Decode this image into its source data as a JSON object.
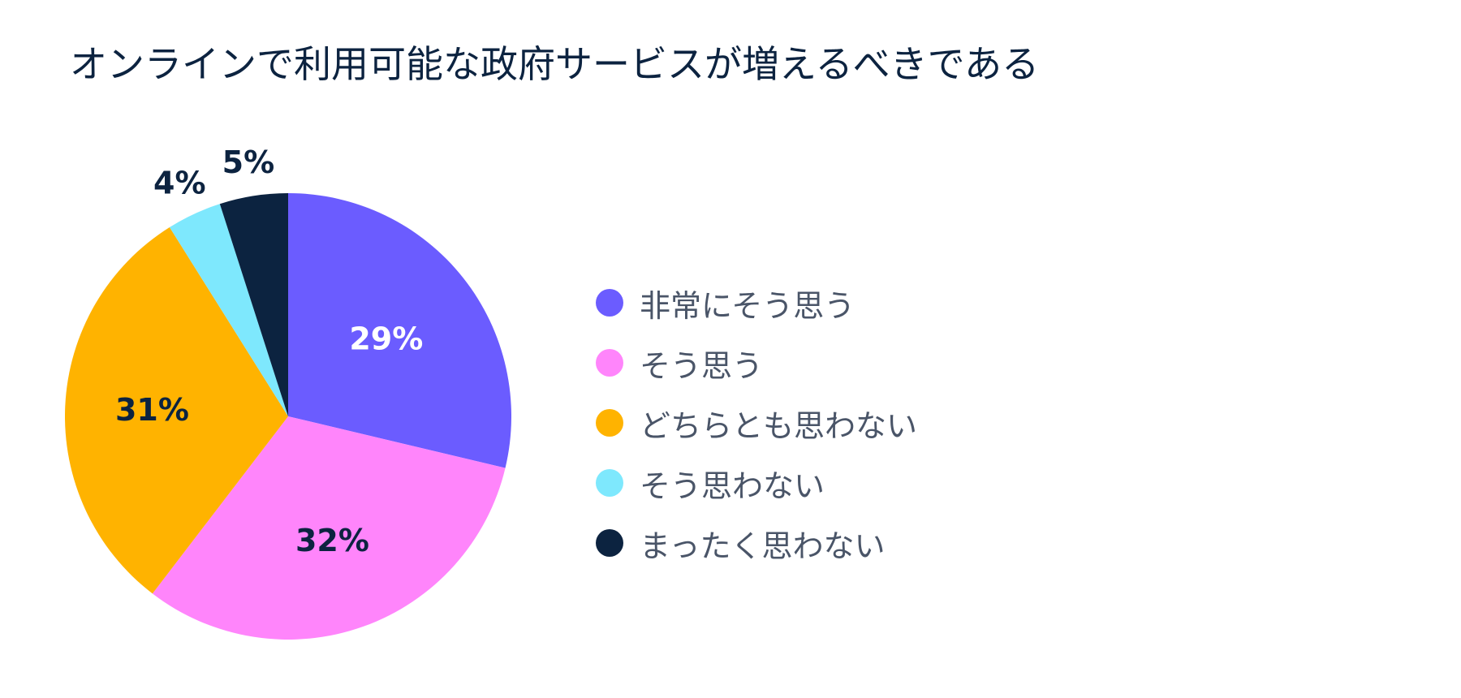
{
  "chart_data": {
    "type": "pie",
    "title": "オンラインで利用可能な政府サービスが増えるべきである",
    "categories": [
      "非常にそう思う",
      "そう思う",
      "どちらとも思わない",
      "そう思わない",
      "まったく思わない"
    ],
    "values": [
      29,
      32,
      31,
      4,
      5
    ],
    "value_labels": [
      "29%",
      "32%",
      "31%",
      "4%",
      "5%"
    ],
    "colors": [
      "#6b5cff",
      "#ff85fb",
      "#ffb300",
      "#7ee8fd",
      "#0c2340"
    ],
    "label_colors": [
      "#ffffff",
      "#0c2340",
      "#0c2340",
      "#0c2340",
      "#0c2340"
    ],
    "legend_position": "right"
  }
}
